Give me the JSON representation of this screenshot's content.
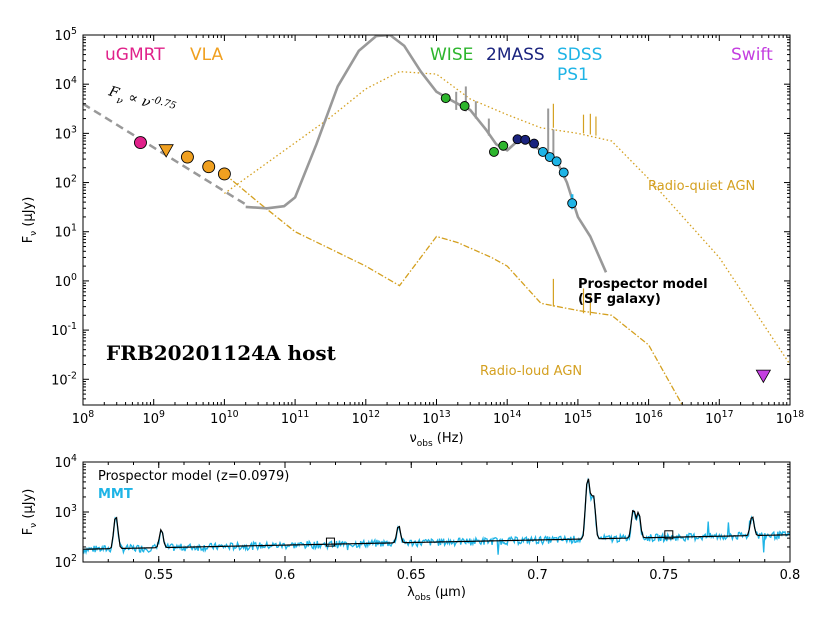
{
  "chart_data": [
    {
      "type": "scatter",
      "title": "FRB20201124A host",
      "xlabel_main": "ν",
      "xlabel_sub": "obs",
      "xlabel_unit": "(Hz)",
      "ylabel_main": "F",
      "ylabel_sub": "ν",
      "ylabel_unit": "(μJy)",
      "x_scale": "log",
      "y_scale": "log",
      "xlim": [
        100000000.0,
        1e+18
      ],
      "ylim": [
        0.003,
        100000
      ],
      "x_tick_labels": [
        "10",
        "10",
        "10",
        "10",
        "10",
        "10",
        "10",
        "10",
        "10",
        "10",
        "10"
      ],
      "x_tick_exps": [
        "8",
        "9",
        "10",
        "11",
        "12",
        "13",
        "14",
        "15",
        "16",
        "17",
        "18"
      ],
      "y_tick_labels": [
        "10",
        "10",
        "10",
        "10",
        "10",
        "10",
        "10",
        "10"
      ],
      "y_tick_exps": [
        "-2",
        "-1",
        "0",
        "1",
        "2",
        "3",
        "4",
        "5"
      ],
      "telescope_labels": [
        {
          "text": "uGMRT",
          "color": "#e0218a"
        },
        {
          "text": "VLA",
          "color": "#f0a020"
        },
        {
          "text": "WISE",
          "color": "#2db52d"
        },
        {
          "text": "2MASS",
          "color": "#1a237e"
        },
        {
          "text": "SDSS",
          "color": "#1eb4e6"
        },
        {
          "text": "PS1",
          "color": "#1eb4e6"
        },
        {
          "text": "Swift",
          "color": "#c43ee0"
        }
      ],
      "powerlaw_label": "F",
      "powerlaw_label_sub": "ν",
      "powerlaw_label_rest": " ∝ ν",
      "powerlaw_label_exp": "-0.75",
      "annotations": {
        "prospector_line1": "Prospector model",
        "prospector_line2": "(SF galaxy)",
        "radio_quiet": "Radio-quiet AGN",
        "radio_loud": "Radio-loud AGN"
      },
      "colors": {
        "uGMRT": "#e0218a",
        "VLA": "#f0a020",
        "WISE": "#2db52d",
        "2MASS": "#1a237e",
        "SDSS_PS1": "#1eb4e6",
        "Swift": "#c43ee0",
        "model": "#999999",
        "agn": "#d4a020",
        "powerlaw": "#999999"
      },
      "series": [
        {
          "name": "uGMRT",
          "marker": "circle",
          "points": [
            [
              650000000.0,
              650
            ]
          ]
        },
        {
          "name": "VLA",
          "marker": "circle",
          "points": [
            [
              3000000000.0,
              330
            ],
            [
              6000000000.0,
              210
            ],
            [
              10000000000.0,
              150
            ]
          ]
        },
        {
          "name": "VLA",
          "marker": "triangle-down",
          "points": [
            [
              1500000000.0,
              460
            ]
          ]
        },
        {
          "name": "WISE",
          "marker": "circle",
          "points": [
            [
              13500000000000.0,
              5200
            ],
            [
              25000000000000.0,
              3600
            ],
            [
              65000000000000.0,
              420
            ],
            [
              88000000000000.0,
              560
            ]
          ]
        },
        {
          "name": "2MASS",
          "marker": "circle",
          "points": [
            [
              140000000000000.0,
              760
            ],
            [
              180000000000000.0,
              740
            ],
            [
              240000000000000.0,
              620
            ]
          ]
        },
        {
          "name": "SDSS/PS1",
          "marker": "circle",
          "points": [
            [
              320000000000000.0,
              420
            ],
            [
              400000000000000.0,
              330
            ],
            [
              500000000000000.0,
              270
            ],
            [
              630000000000000.0,
              160
            ],
            [
              830000000000000.0,
              38
            ]
          ]
        },
        {
          "name": "Swift",
          "marker": "triangle-down",
          "points": [
            [
              4.2e+17,
              0.012
            ]
          ]
        }
      ],
      "curves": {
        "prospector": [
          [
            20000000000.0,
            32
          ],
          [
            40000000000.0,
            30
          ],
          [
            70000000000.0,
            33
          ],
          [
            100000000000.0,
            50
          ],
          [
            200000000000.0,
            600
          ],
          [
            400000000000.0,
            9000
          ],
          [
            800000000000.0,
            48000
          ],
          [
            1400000000000.0,
            95000
          ],
          [
            2200000000000.0,
            100000
          ],
          [
            3500000000000.0,
            60000
          ],
          [
            6000000000000.0,
            18000
          ],
          [
            10000000000000.0,
            7000
          ],
          [
            15000000000000.0,
            5000
          ],
          [
            20000000000000.0,
            4000
          ],
          [
            30000000000000.0,
            3000
          ],
          [
            50000000000000.0,
            1200
          ],
          [
            70000000000000.0,
            600
          ],
          [
            100000000000000.0,
            450
          ],
          [
            140000000000000.0,
            700
          ],
          [
            200000000000000.0,
            650
          ],
          [
            300000000000000.0,
            450
          ],
          [
            500000000000000.0,
            280
          ],
          [
            700000000000000.0,
            100
          ],
          [
            1000000000000000.0,
            20
          ],
          [
            1500000000000000.0,
            8
          ],
          [
            2500000000000000.0,
            1.5
          ]
        ],
        "radio_quiet": [
          [
            10000000000.0,
            60
          ],
          [
            300000000000.0,
            2000
          ],
          [
            1000000000000.0,
            8000
          ],
          [
            3000000000000.0,
            18000
          ],
          [
            10000000000000.0,
            16000
          ],
          [
            30000000000000.0,
            5000
          ],
          [
            100000000000000.0,
            2400
          ],
          [
            300000000000000.0,
            1300
          ],
          [
            1000000000000000.0,
            1000
          ],
          [
            3000000000000000.0,
            700
          ],
          [
            1e+16,
            120
          ],
          [
            1e+17,
            3
          ],
          [
            1e+18,
            0.02
          ]
        ],
        "radio_loud": [
          [
            10000000000.0,
            150
          ],
          [
            30000000000.0,
            40
          ],
          [
            100000000000.0,
            10
          ],
          [
            1000000000000.0,
            2
          ],
          [
            3000000000000.0,
            0.8
          ],
          [
            10000000000000.0,
            8
          ],
          [
            20000000000000.0,
            6
          ],
          [
            60000000000000.0,
            3
          ],
          [
            100000000000000.0,
            2
          ],
          [
            300000000000000.0,
            0.35
          ],
          [
            1000000000000000.0,
            0.25
          ],
          [
            3000000000000000.0,
            0.2
          ],
          [
            1e+16,
            0.05
          ],
          [
            3e+16,
            0.003
          ]
        ],
        "powerlaw": [
          [
            100000000.0,
            4000
          ],
          [
            20000000000.0,
            36
          ]
        ]
      }
    },
    {
      "type": "line",
      "xlabel_main": "λ",
      "xlabel_sub": "obs",
      "xlabel_unit": "(μm)",
      "ylabel_main": "F",
      "ylabel_sub": "ν",
      "ylabel_unit": "(μJy)",
      "y_scale": "log",
      "xlim": [
        0.52,
        0.8
      ],
      "ylim": [
        100,
        10000
      ],
      "x_tick_labels": [
        "0.55",
        "0.6",
        "0.65",
        "0.7",
        "0.75",
        "0.8"
      ],
      "y_tick_labels": [
        "10",
        "10",
        "10"
      ],
      "y_tick_exps": [
        "2",
        "3",
        "4"
      ],
      "legend": [
        {
          "text": "Prospector model (z=0.0979)",
          "color": "#000000"
        },
        {
          "text": "MMT",
          "color": "#1eb4e6"
        }
      ],
      "emission_lines": [
        [
          0.533,
          650
        ],
        [
          0.551,
          260
        ],
        [
          0.645,
          300
        ],
        [
          0.72,
          4500
        ],
        [
          0.722,
          2000
        ],
        [
          0.738,
          850
        ],
        [
          0.74,
          700
        ],
        [
          0.785,
          500
        ]
      ],
      "continuum": [
        [
          0.52,
          180
        ],
        [
          0.8,
          350
        ]
      ],
      "square_markers": [
        [
          0.618,
          250
        ],
        [
          0.752,
          350
        ]
      ]
    }
  ]
}
